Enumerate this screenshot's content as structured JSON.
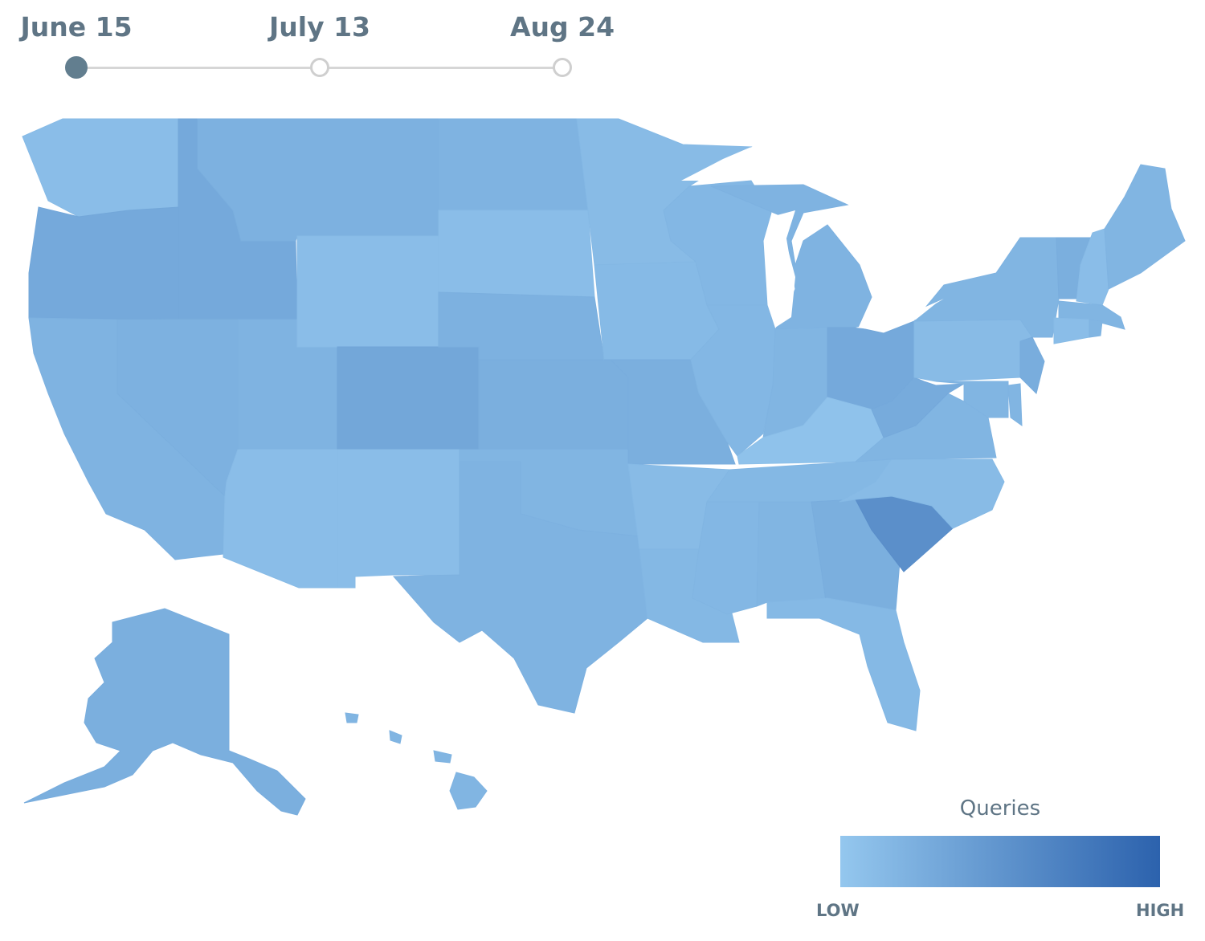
{
  "timeline": {
    "dates": [
      "June 15",
      "July 13",
      "Aug 24"
    ],
    "active_index": 0,
    "colors": {
      "active": "#627e8f",
      "inactive": "#cfcfcf",
      "track": "#d6d6d6",
      "label": "#5f7585"
    }
  },
  "legend": {
    "title": "Queries",
    "low_label": "LOW",
    "high_label": "HIGH",
    "color_low": "#94c7ee",
    "color_high": "#2c62ad"
  },
  "map_data": {
    "metric": "Queries",
    "scale": "relative",
    "regions": [
      {
        "name": "Washington",
        "value": 0.1
      },
      {
        "name": "Oregon",
        "value": 0.3
      },
      {
        "name": "California",
        "value": 0.2
      },
      {
        "name": "Idaho",
        "value": 0.3
      },
      {
        "name": "Nevada",
        "value": 0.22
      },
      {
        "name": "Utah",
        "value": 0.2
      },
      {
        "name": "Arizona",
        "value": 0.1
      },
      {
        "name": "Montana",
        "value": 0.22
      },
      {
        "name": "Wyoming",
        "value": 0.1
      },
      {
        "name": "Colorado",
        "value": 0.32
      },
      {
        "name": "New Mexico",
        "value": 0.1
      },
      {
        "name": "North Dakota",
        "value": 0.2
      },
      {
        "name": "South Dakota",
        "value": 0.1
      },
      {
        "name": "Nebraska",
        "value": 0.22
      },
      {
        "name": "Kansas",
        "value": 0.24
      },
      {
        "name": "Oklahoma",
        "value": 0.18
      },
      {
        "name": "Texas",
        "value": 0.2
      },
      {
        "name": "Minnesota",
        "value": 0.12
      },
      {
        "name": "Iowa",
        "value": 0.13
      },
      {
        "name": "Missouri",
        "value": 0.24
      },
      {
        "name": "Arkansas",
        "value": 0.12
      },
      {
        "name": "Louisiana",
        "value": 0.15
      },
      {
        "name": "Wisconsin",
        "value": 0.16
      },
      {
        "name": "Illinois",
        "value": 0.16
      },
      {
        "name": "Michigan",
        "value": 0.2
      },
      {
        "name": "Indiana",
        "value": 0.18
      },
      {
        "name": "Ohio",
        "value": 0.3
      },
      {
        "name": "Kentucky",
        "value": 0.05
      },
      {
        "name": "Tennessee",
        "value": 0.15
      },
      {
        "name": "Mississippi",
        "value": 0.16
      },
      {
        "name": "Alabama",
        "value": 0.18
      },
      {
        "name": "Georgia",
        "value": 0.24
      },
      {
        "name": "Florida",
        "value": 0.14
      },
      {
        "name": "South Carolina",
        "value": 0.55
      },
      {
        "name": "North Carolina",
        "value": 0.12
      },
      {
        "name": "Virginia",
        "value": 0.18
      },
      {
        "name": "West Virginia",
        "value": 0.28
      },
      {
        "name": "Pennsylvania",
        "value": 0.12
      },
      {
        "name": "New York",
        "value": 0.18
      },
      {
        "name": "New Jersey",
        "value": 0.26
      },
      {
        "name": "Delaware",
        "value": 0.18
      },
      {
        "name": "Maryland",
        "value": 0.18
      },
      {
        "name": "Vermont",
        "value": 0.24
      },
      {
        "name": "New Hampshire",
        "value": 0.1
      },
      {
        "name": "Maine",
        "value": 0.18
      },
      {
        "name": "Massachusetts",
        "value": 0.18
      },
      {
        "name": "Connecticut",
        "value": 0.1
      },
      {
        "name": "Rhode Island",
        "value": 0.18
      },
      {
        "name": "Alaska",
        "value": 0.24
      },
      {
        "name": "Hawaii",
        "value": 0.18
      }
    ]
  }
}
